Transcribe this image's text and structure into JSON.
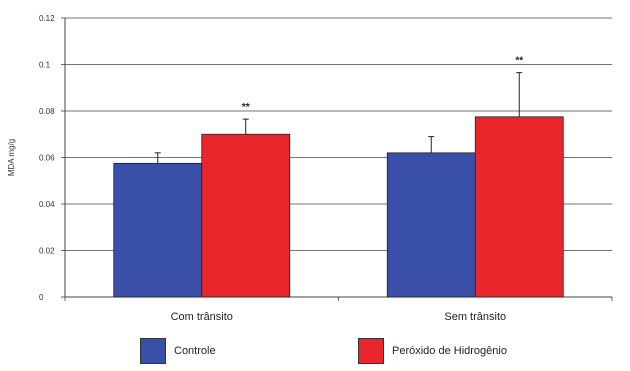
{
  "chart_data": {
    "type": "bar",
    "title": "",
    "xlabel": "",
    "ylabel": "MDA mg/g",
    "ylim": [
      0,
      0.12
    ],
    "yticks": [
      "0",
      "0.02",
      "0.04",
      "0.06",
      "0.08",
      "0.1",
      "0.12"
    ],
    "categories": [
      "Com trânsito",
      "Sem trânsito"
    ],
    "series": [
      {
        "name": "Controle",
        "color": "#3a4fa8",
        "values": [
          0.0575,
          0.062
        ],
        "errors": [
          0.0045,
          0.007
        ]
      },
      {
        "name": "Peróxido de Hidrogênio",
        "color": "#e8262b",
        "values": [
          0.07,
          0.0775
        ],
        "errors": [
          0.0065,
          0.019
        ]
      }
    ],
    "annotations": [
      {
        "category": "Com trânsito",
        "series": "Peróxido de Hidrogênio",
        "text": "**"
      },
      {
        "category": "Sem trânsito",
        "series": "Peróxido de Hidrogênio",
        "text": "**"
      }
    ],
    "grid": true,
    "legend_position": "bottom"
  }
}
